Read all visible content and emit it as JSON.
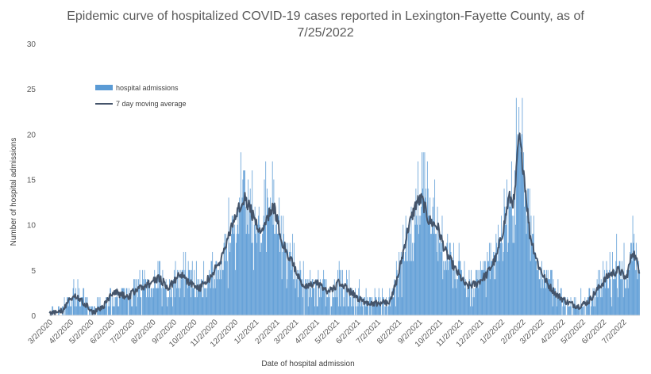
{
  "chart_data": {
    "type": "bar",
    "title_line1": "Epidemic curve of hospitalized COVID-19 cases reported in Lexington-Fayette County, as of",
    "title_line2": "7/25/2022",
    "xlabel": "Date of hospital admission",
    "ylabel": "Number of hospital admissions",
    "ylim": [
      0,
      30
    ],
    "y_ticks": [
      "0",
      "5",
      "10",
      "15",
      "20",
      "25",
      "30"
    ],
    "x_start": "3/1/2020",
    "x_end": "7/25/2022",
    "x_tick_labels": [
      "3/2/2020",
      "4/2/2020",
      "5/2/2020",
      "6/2/2020",
      "7/2/2020",
      "8/2/2020",
      "9/2/2020",
      "10/2/2020",
      "11/2/2020",
      "12/2/2020",
      "1/2/2021",
      "2/2/2021",
      "3/2/2021",
      "4/2/2021",
      "5/2/2021",
      "6/2/2021",
      "7/2/2021",
      "8/2/2021",
      "9/2/2021",
      "10/2/2021",
      "11/2/2021",
      "12/2/2021",
      "1/2/2022",
      "2/2/2022",
      "3/2/2022",
      "4/2/2022",
      "5/2/2022",
      "6/2/2022",
      "7/2/2022"
    ],
    "legend": {
      "placement": "top-left"
    },
    "series": [
      {
        "name": "hospital admissions",
        "kind": "bar",
        "color": "#5b9bd5"
      },
      {
        "name": "7 day moving average",
        "kind": "line",
        "color": "#44546a"
      }
    ],
    "moving_average_points": [
      {
        "date": "3/1/2020",
        "value": 0.2
      },
      {
        "date": "3/20/2020",
        "value": 0.5
      },
      {
        "date": "4/5/2020",
        "value": 2.2
      },
      {
        "date": "4/20/2020",
        "value": 1.4
      },
      {
        "date": "5/5/2020",
        "value": 0.3
      },
      {
        "date": "5/20/2020",
        "value": 1.0
      },
      {
        "date": "6/5/2020",
        "value": 2.6
      },
      {
        "date": "6/25/2020",
        "value": 2.0
      },
      {
        "date": "7/10/2020",
        "value": 3.0
      },
      {
        "date": "7/25/2020",
        "value": 3.4
      },
      {
        "date": "8/10/2020",
        "value": 4.2
      },
      {
        "date": "8/25/2020",
        "value": 3.0
      },
      {
        "date": "9/10/2020",
        "value": 4.6
      },
      {
        "date": "9/25/2020",
        "value": 3.6
      },
      {
        "date": "10/10/2020",
        "value": 3.0
      },
      {
        "date": "10/25/2020",
        "value": 4.2
      },
      {
        "date": "11/10/2020",
        "value": 6.0
      },
      {
        "date": "11/25/2020",
        "value": 9.5
      },
      {
        "date": "12/8/2020",
        "value": 12.0
      },
      {
        "date": "12/15/2020",
        "value": 13.2
      },
      {
        "date": "12/28/2020",
        "value": 11.0
      },
      {
        "date": "1/8/2021",
        "value": 9.0
      },
      {
        "date": "1/18/2021",
        "value": 11.0
      },
      {
        "date": "1/28/2021",
        "value": 12.0
      },
      {
        "date": "2/10/2021",
        "value": 8.0
      },
      {
        "date": "2/25/2021",
        "value": 5.6
      },
      {
        "date": "3/15/2021",
        "value": 3.0
      },
      {
        "date": "4/1/2021",
        "value": 3.6
      },
      {
        "date": "4/20/2021",
        "value": 2.6
      },
      {
        "date": "5/5/2021",
        "value": 3.6
      },
      {
        "date": "5/25/2021",
        "value": 2.4
      },
      {
        "date": "6/10/2021",
        "value": 1.5
      },
      {
        "date": "7/1/2021",
        "value": 1.3
      },
      {
        "date": "7/20/2021",
        "value": 1.5
      },
      {
        "date": "8/1/2021",
        "value": 4.5
      },
      {
        "date": "8/15/2021",
        "value": 9.5
      },
      {
        "date": "8/28/2021",
        "value": 12.5
      },
      {
        "date": "9/5/2021",
        "value": 12.8
      },
      {
        "date": "9/15/2021",
        "value": 10.5
      },
      {
        "date": "9/28/2021",
        "value": 9.8
      },
      {
        "date": "10/10/2021",
        "value": 7.0
      },
      {
        "date": "10/25/2021",
        "value": 5.0
      },
      {
        "date": "11/10/2021",
        "value": 3.2
      },
      {
        "date": "11/25/2021",
        "value": 3.5
      },
      {
        "date": "12/10/2021",
        "value": 4.5
      },
      {
        "date": "12/25/2021",
        "value": 6.5
      },
      {
        "date": "1/5/2022",
        "value": 10.0
      },
      {
        "date": "1/12/2022",
        "value": 13.0
      },
      {
        "date": "1/20/2022",
        "value": 12.5
      },
      {
        "date": "1/27/2022",
        "value": 19.8
      },
      {
        "date": "2/3/2022",
        "value": 16.0
      },
      {
        "date": "2/12/2022",
        "value": 9.0
      },
      {
        "date": "2/25/2022",
        "value": 5.5
      },
      {
        "date": "3/10/2022",
        "value": 3.5
      },
      {
        "date": "3/25/2022",
        "value": 2.2
      },
      {
        "date": "4/10/2022",
        "value": 1.4
      },
      {
        "date": "4/25/2022",
        "value": 1.0
      },
      {
        "date": "5/10/2022",
        "value": 1.5
      },
      {
        "date": "5/25/2022",
        "value": 3.0
      },
      {
        "date": "6/10/2022",
        "value": 4.5
      },
      {
        "date": "6/25/2022",
        "value": 5.0
      },
      {
        "date": "7/5/2022",
        "value": 4.0
      },
      {
        "date": "7/15/2022",
        "value": 7.2
      },
      {
        "date": "7/25/2022",
        "value": 5.0
      }
    ]
  }
}
